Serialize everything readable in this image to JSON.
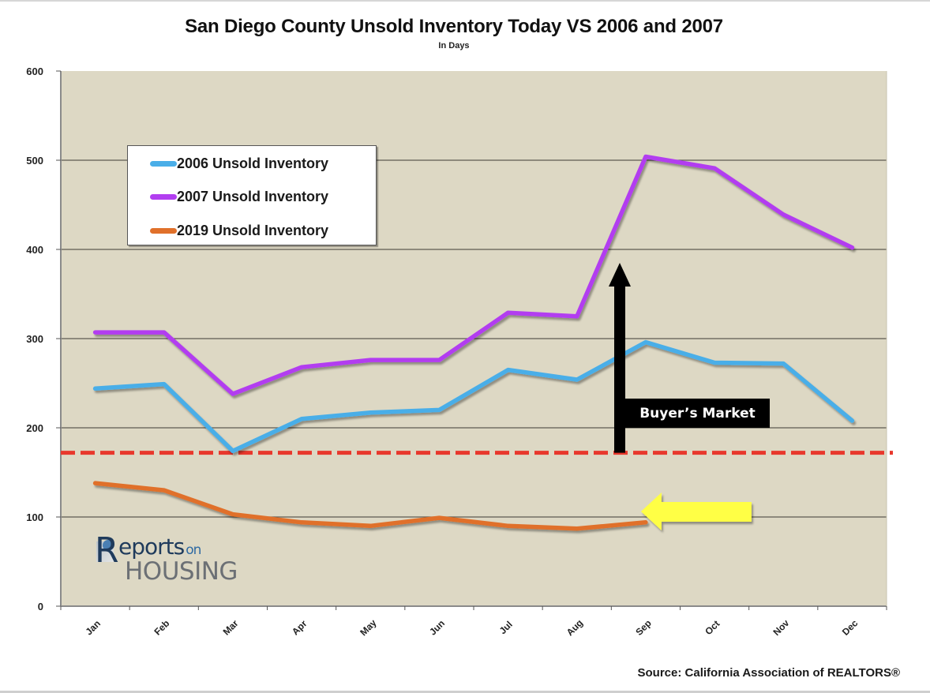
{
  "header": {
    "title": "San Diego County Unsold Inventory Today VS 2006 and 2007",
    "subtitle": "In Days"
  },
  "annotations": {
    "buyers_market_label": "Buyer’s Market",
    "threshold_line_value": 172,
    "threshold_line_color": "#e8382c",
    "buyers_arrow_color": "#000000",
    "current_arrow_color": "#ffff44",
    "current_arrow_points_to": "Sep"
  },
  "logo": {
    "line1_prefix": "R",
    "line1": "eports",
    "line1_suffix": "on",
    "line2": "HOUSING"
  },
  "footer": {
    "source": "Source: California Association of REALTORS®"
  },
  "colors": {
    "plot_background": "#ddd8c4",
    "gridline": "#5e5a50",
    "axis": "#8a8a8a"
  },
  "chart_data": {
    "type": "line",
    "title": "San Diego County Unsold Inventory Today VS 2006 and 2007",
    "subtitle": "In Days",
    "xlabel": "",
    "ylabel": "",
    "ylim": [
      0,
      600
    ],
    "yticks": [
      0,
      100,
      200,
      300,
      400,
      500,
      600
    ],
    "ytick_labels": [
      "0",
      "100",
      "200",
      "300",
      "400",
      "500",
      "600"
    ],
    "grid": true,
    "legend_position": "top-left",
    "categories": [
      "Jan",
      "Feb",
      "Mar",
      "Apr",
      "May",
      "Jun",
      "Jul",
      "Aug",
      "Sep",
      "Oct",
      "Nov",
      "Dec"
    ],
    "series": [
      {
        "name": "2006 Unsold Inventory",
        "color": "#4aaee8",
        "values": [
          244,
          249,
          174,
          210,
          217,
          220,
          265,
          254,
          296,
          273,
          272,
          208
        ]
      },
      {
        "name": "2007 Unsold Inventory",
        "color": "#b23ef0",
        "values": [
          307,
          307,
          238,
          268,
          276,
          276,
          329,
          325,
          504,
          491,
          439,
          402
        ]
      },
      {
        "name": "2019 Unsold Inventory",
        "color": "#e0702a",
        "values": [
          138,
          130,
          103,
          94,
          90,
          99,
          90,
          87,
          94,
          null,
          null,
          null
        ]
      }
    ],
    "reference_lines": [
      {
        "label": "Buyer’s Market threshold",
        "value": 172,
        "style": "dashed",
        "color": "#e8382c"
      }
    ],
    "source": "Source: California Association of REALTORS®"
  }
}
